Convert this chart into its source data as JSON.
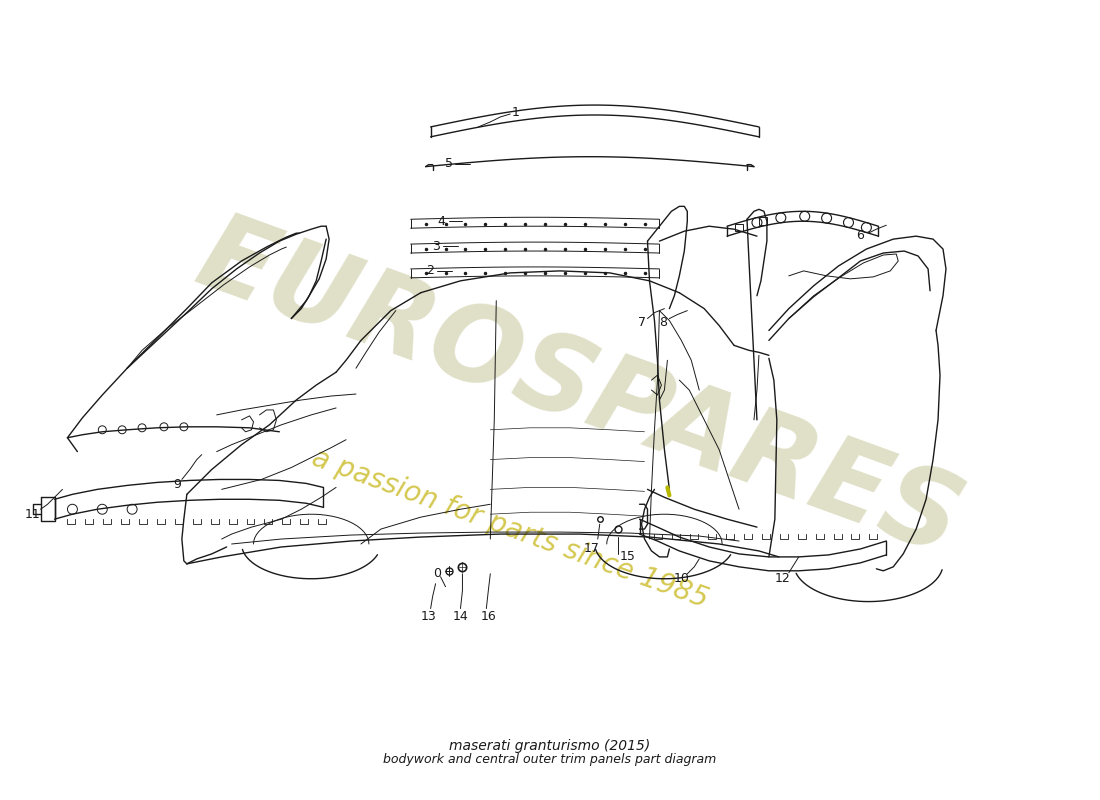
{
  "title_line1": "maserati granturismo (2015)",
  "title_line2": "bodywork and central outer trim panels part diagram",
  "background_color": "#ffffff",
  "line_color": "#1a1a1a",
  "watermark_color_es": "#e0e0c8",
  "watermark_color_text": "#d4c850",
  "watermark_text1": "EUROSPARES",
  "watermark_text2": "a passion for parts since 1985",
  "yellow_accent": "#b8b800",
  "part_numbers": [
    "0",
    "1",
    "2",
    "3",
    "4",
    "5",
    "6",
    "7",
    "8",
    "9",
    "10",
    "11",
    "12",
    "13",
    "14",
    "15",
    "16",
    "17"
  ]
}
